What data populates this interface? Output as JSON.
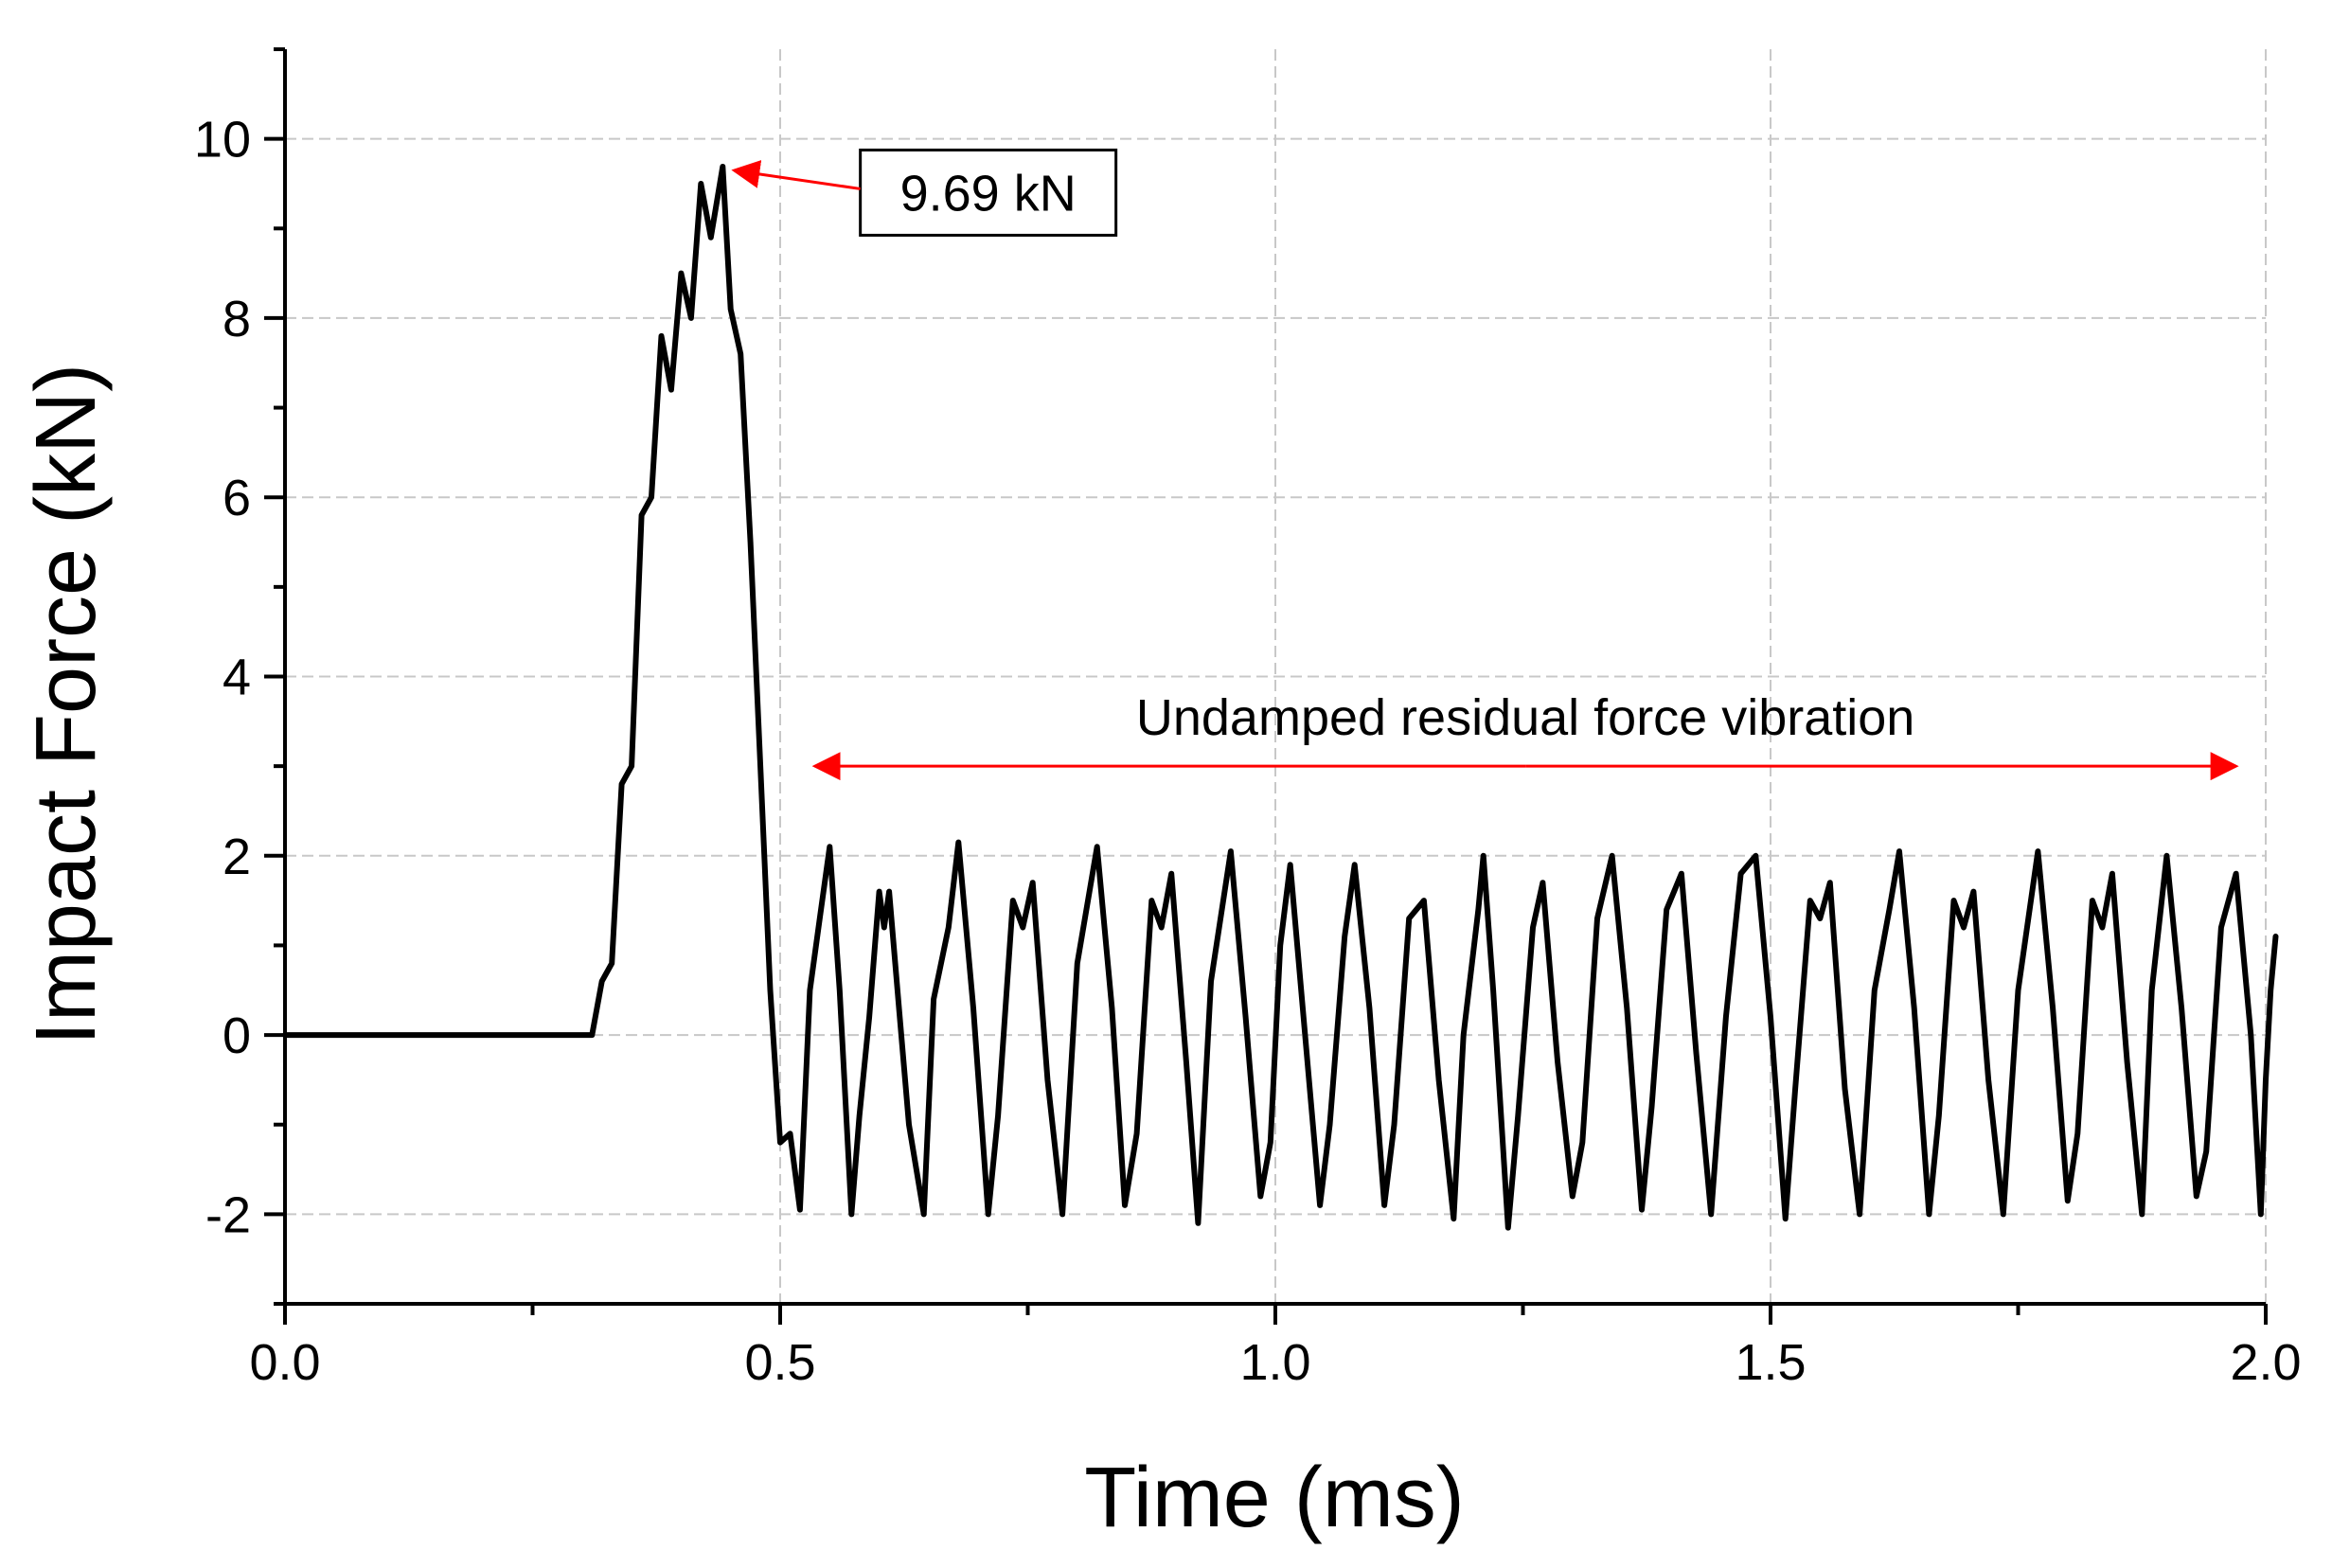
{
  "chart_data": {
    "type": "line",
    "title": "",
    "xlabel": "Time (ms)",
    "ylabel": "Impact Force (kN)",
    "xlim": [
      0,
      2.0
    ],
    "ylim": [
      -3,
      11
    ],
    "x_ticks": [
      0.0,
      0.5,
      1.0,
      1.5,
      2.0
    ],
    "x_tick_labels": [
      "0.0",
      "0.5",
      "1.0",
      "1.5",
      "2.0"
    ],
    "y_ticks": [
      -2,
      0,
      2,
      4,
      6,
      8,
      10
    ],
    "y_tick_labels": [
      "-2",
      "0",
      "2",
      "4",
      "6",
      "8",
      "10"
    ],
    "grid": true,
    "series": [
      {
        "name": "Impact Force",
        "color": "#000000",
        "points": [
          [
            0.0,
            0.0
          ],
          [
            0.31,
            0.0
          ],
          [
            0.32,
            0.6
          ],
          [
            0.33,
            0.8
          ],
          [
            0.34,
            2.8
          ],
          [
            0.35,
            3.0
          ],
          [
            0.36,
            5.8
          ],
          [
            0.37,
            6.0
          ],
          [
            0.38,
            7.8
          ],
          [
            0.39,
            7.2
          ],
          [
            0.4,
            8.5
          ],
          [
            0.41,
            8.0
          ],
          [
            0.42,
            9.5
          ],
          [
            0.43,
            8.9
          ],
          [
            0.442,
            9.69
          ],
          [
            0.45,
            8.1
          ],
          [
            0.46,
            7.6
          ],
          [
            0.47,
            5.5
          ],
          [
            0.48,
            3.0
          ],
          [
            0.49,
            0.5
          ],
          [
            0.5,
            -1.2
          ],
          [
            0.51,
            -1.1
          ],
          [
            0.52,
            -1.95
          ],
          [
            0.53,
            0.5
          ],
          [
            0.54,
            1.3
          ],
          [
            0.55,
            2.1
          ],
          [
            0.56,
            0.5
          ],
          [
            0.572,
            -2.0
          ],
          [
            0.58,
            -0.9
          ],
          [
            0.59,
            0.2
          ],
          [
            0.6,
            1.6
          ],
          [
            0.605,
            1.2
          ],
          [
            0.61,
            1.6
          ],
          [
            0.62,
            0.3
          ],
          [
            0.63,
            -1.0
          ],
          [
            0.645,
            -2.0
          ],
          [
            0.655,
            0.4
          ],
          [
            0.67,
            1.2
          ],
          [
            0.68,
            2.15
          ],
          [
            0.695,
            0.3
          ],
          [
            0.71,
            -2.0
          ],
          [
            0.72,
            -0.9
          ],
          [
            0.735,
            1.5
          ],
          [
            0.745,
            1.2
          ],
          [
            0.755,
            1.7
          ],
          [
            0.77,
            -0.5
          ],
          [
            0.785,
            -2.0
          ],
          [
            0.8,
            0.8
          ],
          [
            0.82,
            2.1
          ],
          [
            0.835,
            0.3
          ],
          [
            0.848,
            -1.9
          ],
          [
            0.86,
            -1.1
          ],
          [
            0.875,
            1.5
          ],
          [
            0.885,
            1.2
          ],
          [
            0.895,
            1.8
          ],
          [
            0.91,
            -0.3
          ],
          [
            0.922,
            -2.1
          ],
          [
            0.935,
            0.6
          ],
          [
            0.955,
            2.05
          ],
          [
            0.97,
            0.2
          ],
          [
            0.985,
            -1.8
          ],
          [
            0.995,
            -1.2
          ],
          [
            1.005,
            1.0
          ],
          [
            1.015,
            1.9
          ],
          [
            1.03,
            0.0
          ],
          [
            1.045,
            -1.9
          ],
          [
            1.055,
            -1.0
          ],
          [
            1.07,
            1.1
          ],
          [
            1.08,
            1.9
          ],
          [
            1.095,
            0.3
          ],
          [
            1.11,
            -1.9
          ],
          [
            1.12,
            -1.0
          ],
          [
            1.135,
            1.3
          ],
          [
            1.15,
            1.5
          ],
          [
            1.165,
            -0.5
          ],
          [
            1.18,
            -2.05
          ],
          [
            1.19,
            0.0
          ],
          [
            1.205,
            1.4
          ],
          [
            1.21,
            2.0
          ],
          [
            1.22,
            0.5
          ],
          [
            1.235,
            -2.15
          ],
          [
            1.245,
            -0.9
          ],
          [
            1.26,
            1.2
          ],
          [
            1.27,
            1.7
          ],
          [
            1.285,
            -0.3
          ],
          [
            1.3,
            -1.8
          ],
          [
            1.31,
            -1.2
          ],
          [
            1.325,
            1.3
          ],
          [
            1.34,
            2.0
          ],
          [
            1.355,
            0.3
          ],
          [
            1.37,
            -1.95
          ],
          [
            1.38,
            -0.8
          ],
          [
            1.395,
            1.4
          ],
          [
            1.41,
            1.8
          ],
          [
            1.425,
            -0.2
          ],
          [
            1.44,
            -2.0
          ],
          [
            1.455,
            0.2
          ],
          [
            1.47,
            1.8
          ],
          [
            1.485,
            2.0
          ],
          [
            1.5,
            0.2
          ],
          [
            1.515,
            -2.05
          ],
          [
            1.525,
            -0.6
          ],
          [
            1.54,
            1.5
          ],
          [
            1.55,
            1.3
          ],
          [
            1.56,
            1.7
          ],
          [
            1.575,
            -0.6
          ],
          [
            1.59,
            -2.0
          ],
          [
            1.605,
            0.5
          ],
          [
            1.62,
            1.4
          ],
          [
            1.63,
            2.05
          ],
          [
            1.645,
            0.3
          ],
          [
            1.66,
            -2.0
          ],
          [
            1.67,
            -0.9
          ],
          [
            1.685,
            1.5
          ],
          [
            1.695,
            1.2
          ],
          [
            1.705,
            1.6
          ],
          [
            1.72,
            -0.5
          ],
          [
            1.735,
            -2.0
          ],
          [
            1.75,
            0.5
          ],
          [
            1.77,
            2.05
          ],
          [
            1.785,
            0.3
          ],
          [
            1.8,
            -1.85
          ],
          [
            1.81,
            -1.1
          ],
          [
            1.825,
            1.5
          ],
          [
            1.835,
            1.2
          ],
          [
            1.845,
            1.8
          ],
          [
            1.86,
            -0.3
          ],
          [
            1.875,
            -2.0
          ],
          [
            1.885,
            0.5
          ],
          [
            1.9,
            2.0
          ],
          [
            1.915,
            0.3
          ],
          [
            1.93,
            -1.8
          ],
          [
            1.94,
            -1.3
          ],
          [
            1.955,
            1.2
          ],
          [
            1.97,
            1.8
          ],
          [
            1.985,
            0.0
          ],
          [
            1.995,
            -2.0
          ],
          [
            2.0,
            -0.5
          ],
          [
            2.005,
            0.5
          ],
          [
            2.01,
            1.1
          ]
        ]
      }
    ],
    "annotations": [
      {
        "id": "peak",
        "text": "9.69 kN",
        "x": 0.442,
        "y": 9.69,
        "label_x": 0.71,
        "label_y": 9.4,
        "color": "#ff0000"
      },
      {
        "id": "residual",
        "text": "Undamped residual force vibration",
        "x_start": 0.535,
        "x_end": 1.97,
        "y": 3.0,
        "label_y": 3.55,
        "color": "#ff0000"
      }
    ]
  }
}
